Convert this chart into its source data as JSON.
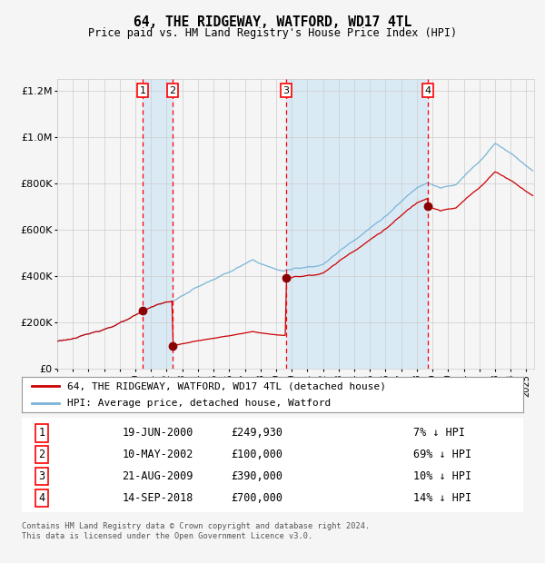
{
  "title": "64, THE RIDGEWAY, WATFORD, WD17 4TL",
  "subtitle": "Price paid vs. HM Land Registry's House Price Index (HPI)",
  "ylim": [
    0,
    1250000
  ],
  "xlim_start": 1995.0,
  "xlim_end": 2025.5,
  "hpi_color": "#7ab4d8",
  "hpi_fill_color": "#daeaf5",
  "price_color": "#cc0000",
  "transaction_color": "#8b0000",
  "background_color": "#f5f5f5",
  "grid_color": "#cccccc",
  "transactions": [
    {
      "label": "1",
      "year": 2000.46,
      "price": 249930,
      "date": "19-JUN-2000",
      "pct": "7%"
    },
    {
      "label": "2",
      "year": 2002.37,
      "price": 100000,
      "date": "10-MAY-2002",
      "pct": "69%"
    },
    {
      "label": "3",
      "year": 2009.64,
      "price": 390000,
      "date": "21-AUG-2009",
      "pct": "10%"
    },
    {
      "label": "4",
      "year": 2018.71,
      "price": 700000,
      "date": "14-SEP-2018",
      "pct": "14%"
    }
  ],
  "shaded_regions": [
    {
      "start": 2000.46,
      "end": 2002.37
    },
    {
      "start": 2009.64,
      "end": 2018.71
    }
  ],
  "table_rows": [
    [
      "1",
      "19-JUN-2000",
      "£249,930",
      "7% ↓ HPI"
    ],
    [
      "2",
      "10-MAY-2002",
      "£100,000",
      "69% ↓ HPI"
    ],
    [
      "3",
      "21-AUG-2009",
      "£390,000",
      "10% ↓ HPI"
    ],
    [
      "4",
      "14-SEP-2018",
      "£700,000",
      "14% ↓ HPI"
    ]
  ],
  "footer": "Contains HM Land Registry data © Crown copyright and database right 2024.\nThis data is licensed under the Open Government Licence v3.0.",
  "legend_line1": "64, THE RIDGEWAY, WATFORD, WD17 4TL (detached house)",
  "legend_line2": "HPI: Average price, detached house, Watford"
}
